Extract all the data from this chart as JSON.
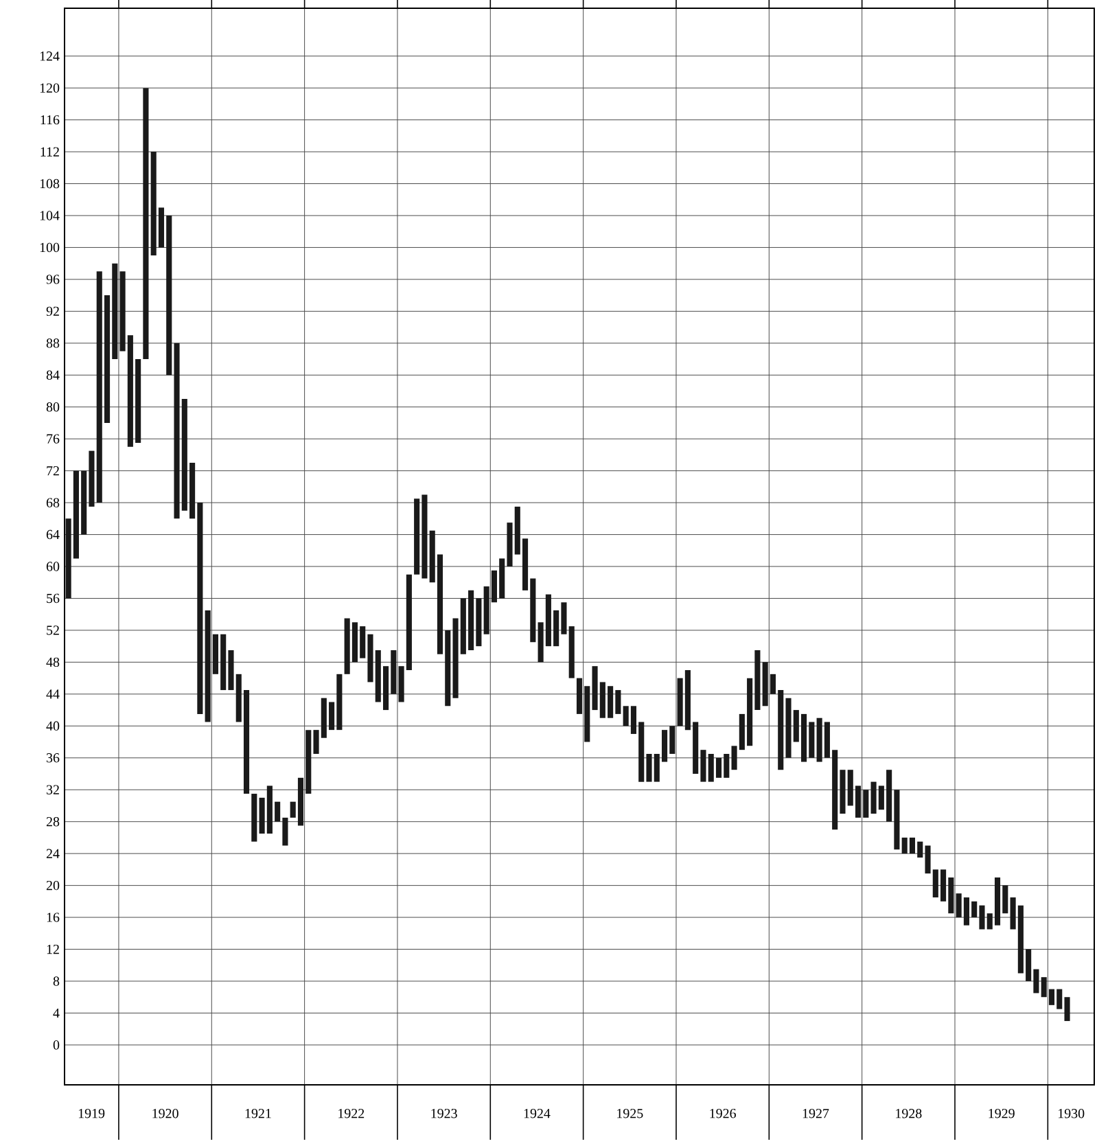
{
  "chart_data": {
    "type": "bar",
    "color": "#1a1a1a",
    "grid": true,
    "x": [
      "1919-06",
      "1919-07",
      "1919-08",
      "1919-09",
      "1919-10",
      "1919-11",
      "1919-12",
      "1920-01",
      "1920-02",
      "1920-03",
      "1920-04",
      "1920-05",
      "1920-06",
      "1920-07",
      "1920-08",
      "1920-09",
      "1920-10",
      "1920-11",
      "1920-12",
      "1921-01",
      "1921-02",
      "1921-03",
      "1921-04",
      "1921-05",
      "1921-06",
      "1921-07",
      "1921-08",
      "1921-09",
      "1921-10",
      "1921-11",
      "1921-12",
      "1922-01",
      "1922-02",
      "1922-03",
      "1922-04",
      "1922-05",
      "1922-06",
      "1922-07",
      "1922-08",
      "1922-09",
      "1922-10",
      "1922-11",
      "1922-12",
      "1923-01",
      "1923-02",
      "1923-03",
      "1923-04",
      "1923-05",
      "1923-06",
      "1923-07",
      "1923-08",
      "1923-09",
      "1923-10",
      "1923-11",
      "1923-12",
      "1924-01",
      "1924-02",
      "1924-03",
      "1924-04",
      "1924-05",
      "1924-06",
      "1924-07",
      "1924-08",
      "1924-09",
      "1924-10",
      "1924-11",
      "1924-12",
      "1925-01",
      "1925-02",
      "1925-03",
      "1925-04",
      "1925-05",
      "1925-06",
      "1925-07",
      "1925-08",
      "1925-09",
      "1925-10",
      "1925-11",
      "1925-12",
      "1926-01",
      "1926-02",
      "1926-03",
      "1926-04",
      "1926-05",
      "1926-06",
      "1926-07",
      "1926-08",
      "1926-09",
      "1926-10",
      "1926-11",
      "1926-12",
      "1927-01",
      "1927-02",
      "1927-03",
      "1927-04",
      "1927-05",
      "1927-06",
      "1927-07",
      "1927-08",
      "1927-09",
      "1927-10",
      "1927-11",
      "1927-12",
      "1928-01",
      "1928-02",
      "1928-03",
      "1928-04",
      "1928-05",
      "1928-06",
      "1928-07",
      "1928-08",
      "1928-09",
      "1928-10",
      "1928-11",
      "1928-12",
      "1929-01",
      "1929-02",
      "1929-03",
      "1929-04",
      "1929-05",
      "1929-06",
      "1929-07",
      "1929-08",
      "1929-09",
      "1929-10",
      "1929-11",
      "1929-12",
      "1930-01",
      "1930-02",
      "1930-03"
    ],
    "base": [
      56,
      61,
      64,
      67.5,
      68,
      78,
      86,
      87,
      75,
      75.5,
      86,
      99,
      100,
      84,
      66,
      67,
      66,
      41.5,
      40.5,
      46.5,
      44.5,
      44.5,
      40.5,
      31.5,
      25.5,
      26.5,
      26.5,
      28,
      25,
      28.5,
      27.5,
      31.5,
      36.5,
      38.5,
      39.5,
      39.5,
      46.5,
      48,
      48.5,
      45.5,
      43,
      42,
      44,
      43,
      47,
      59,
      58.5,
      58,
      49,
      42.5,
      43.5,
      49,
      49.5,
      50,
      51.5,
      55.5,
      56,
      60,
      61.5,
      57,
      50.5,
      48,
      50,
      50,
      51.5,
      46,
      41.5,
      38,
      42,
      41,
      41,
      41.5,
      40,
      39,
      33,
      33,
      33,
      35.5,
      36.5,
      40,
      39.5,
      34,
      33,
      33,
      33.5,
      33.5,
      34.5,
      37,
      37.5,
      42,
      42.5,
      44,
      34.5,
      36,
      38,
      35.5,
      36,
      35.5,
      36,
      27,
      29,
      30,
      28.5,
      28.5,
      29,
      29.5,
      28,
      24.5,
      24,
      24,
      23.5,
      21.5,
      18.5,
      18,
      16.5,
      16,
      15,
      16,
      14.5,
      14.5,
      15,
      16.5,
      14.5,
      9,
      8,
      6.5,
      6,
      5,
      4.5,
      3
    ],
    "values": [
      10,
      11,
      8,
      7,
      29,
      16,
      12,
      10,
      14,
      10.5,
      34,
      13,
      5,
      20,
      22,
      14,
      7,
      26.5,
      14,
      5,
      7,
      5,
      6,
      13,
      6,
      4.5,
      6,
      2.5,
      3.5,
      2,
      6,
      8,
      3,
      5,
      3.5,
      7,
      7,
      5,
      4,
      6,
      6.5,
      5.5,
      5.5,
      4.5,
      12,
      9.5,
      10.5,
      6.5,
      12.5,
      9.5,
      10,
      7,
      7.5,
      6,
      6,
      4,
      5,
      5.5,
      6,
      6.5,
      8,
      5,
      6.5,
      4.5,
      4,
      6.5,
      4.5,
      7,
      5.5,
      4.5,
      4,
      3,
      2.5,
      3.5,
      7.5,
      3.5,
      3.5,
      4,
      3.5,
      6,
      7.5,
      6.5,
      4,
      3.5,
      2.5,
      3,
      3,
      4.5,
      8.5,
      7.5,
      5.5,
      2.5,
      10,
      7.5,
      4,
      6,
      4.5,
      5.5,
      4.5,
      10,
      5.5,
      4.5,
      4,
      3.5,
      4,
      3,
      6.5,
      7.5,
      2,
      2,
      2,
      3.5,
      3.5,
      4,
      4.5,
      3,
      3.5,
      2,
      3,
      2,
      6,
      3.5,
      4,
      8.5,
      4,
      3,
      2.5,
      2,
      2.5,
      3
    ],
    "xlim": [
      "1919-06",
      "1930-07"
    ],
    "ylim": [
      -5,
      130
    ],
    "yticks": [
      0,
      4,
      8,
      12,
      16,
      20,
      24,
      28,
      32,
      36,
      40,
      44,
      48,
      52,
      56,
      60,
      64,
      68,
      72,
      76,
      80,
      84,
      88,
      92,
      96,
      100,
      104,
      108,
      112,
      116,
      120,
      124
    ],
    "xticks": [
      {
        "value": "1919-09-15",
        "label": "1919"
      },
      {
        "value": "1920-01",
        "label": null
      },
      {
        "value": "1920-07",
        "label": "1920"
      },
      {
        "value": "1921-01",
        "label": null
      },
      {
        "value": "1921-07",
        "label": "1921"
      },
      {
        "value": "1922-01",
        "label": null
      },
      {
        "value": "1922-07",
        "label": "1922"
      },
      {
        "value": "1923-01",
        "label": null
      },
      {
        "value": "1923-07",
        "label": "1923"
      },
      {
        "value": "1924-01",
        "label": null
      },
      {
        "value": "1924-07",
        "label": "1924"
      },
      {
        "value": "1925-01",
        "label": null
      },
      {
        "value": "1925-07",
        "label": "1925"
      },
      {
        "value": "1926-01",
        "label": null
      },
      {
        "value": "1926-07",
        "label": "1926"
      },
      {
        "value": "1927-01",
        "label": null
      },
      {
        "value": "1927-07",
        "label": "1927"
      },
      {
        "value": "1928-01",
        "label": null
      },
      {
        "value": "1928-07",
        "label": "1928"
      },
      {
        "value": "1929-01",
        "label": null
      },
      {
        "value": "1929-07",
        "label": "1929"
      },
      {
        "value": "1930-01",
        "label": null
      },
      {
        "value": "1930-04",
        "label": "1930"
      }
    ]
  }
}
